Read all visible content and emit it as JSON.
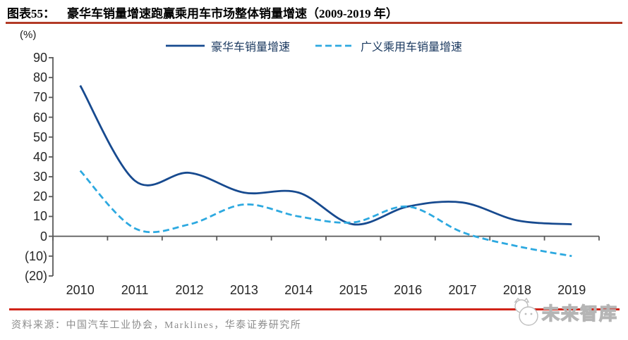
{
  "header": {
    "label": "图表55：",
    "title": "豪华车销量增速跑赢乘用车市场整体销量增速（2009-2019 年）"
  },
  "chart_data": {
    "type": "line",
    "title": "豪华车销量增速跑赢乘用车市场整体销量增速（2009-2019 年）",
    "unit_label": "(%)",
    "categories": [
      "2010",
      "2011",
      "2012",
      "2013",
      "2014",
      "2015",
      "2016",
      "2017",
      "2018",
      "2019"
    ],
    "series": [
      {
        "name": "豪华车销量增速",
        "style": "solid",
        "color": "#174a8f",
        "values": [
          76,
          28,
          32,
          22,
          22,
          6,
          15,
          17,
          8,
          6
        ]
      },
      {
        "name": "广义乘用车销量增速",
        "style": "dashed",
        "color": "#2da9e0",
        "values": [
          33,
          4,
          6,
          16,
          10,
          7,
          15,
          2,
          -5,
          -10
        ]
      }
    ],
    "ylim": [
      -20,
      90
    ],
    "y_ticks": [
      90,
      80,
      70,
      60,
      50,
      40,
      30,
      20,
      10,
      0,
      -10,
      -20
    ],
    "y_tick_labels": [
      "90",
      "80",
      "70",
      "60",
      "50",
      "40",
      "30",
      "20",
      "10",
      "0",
      "(10)",
      "(20)"
    ],
    "legend_position": "top-center",
    "grid": false
  },
  "footer": {
    "source": "资料来源：中国汽车工业协会，Marklines，华泰证券研究所",
    "logo_text": "未来智库"
  },
  "colors": {
    "title_rule": "#b23a27",
    "footer_rule": "#d02318",
    "axis_line": "#595959",
    "luxury_line": "#174a8f",
    "passenger_line": "#2da9e0"
  }
}
